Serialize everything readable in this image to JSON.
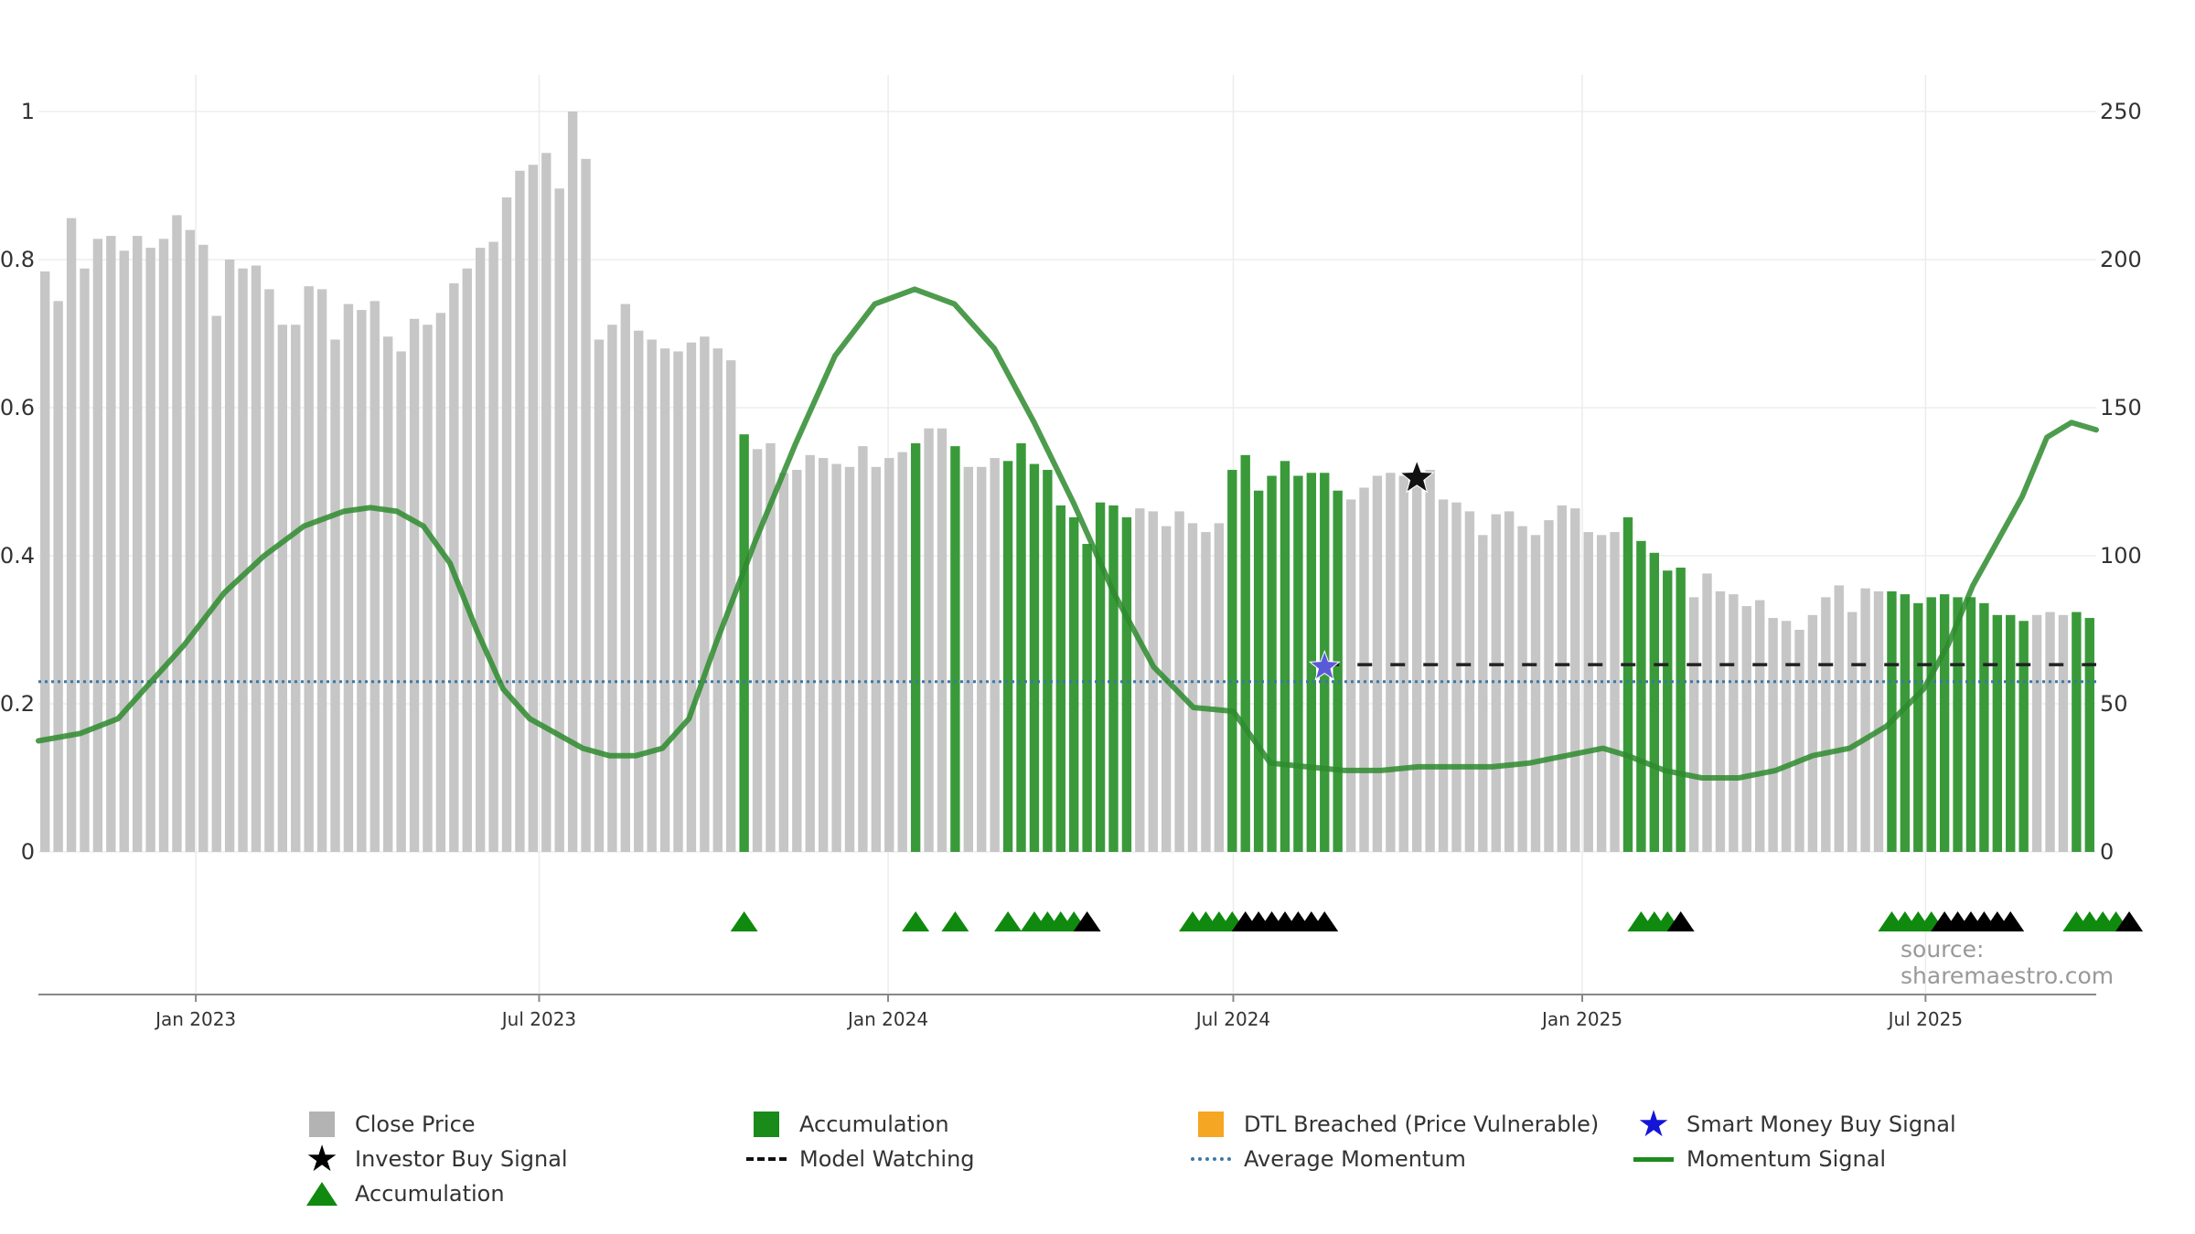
{
  "chart_data": {
    "type": "bar",
    "source": "source: sharemaestro.com",
    "left_axis": {
      "ticks": [
        "0",
        "0.2",
        "0.4",
        "0.6",
        "0.8",
        "1"
      ],
      "range": [
        0,
        1
      ]
    },
    "right_axis": {
      "ticks": [
        "0",
        "50",
        "100",
        "150",
        "200",
        "250"
      ],
      "range": [
        0,
        250
      ]
    },
    "x_axis": {
      "start": "2022-10-10",
      "end": "2025-09-29",
      "ticks": [
        {
          "label": "Jan 2023",
          "date": "2023-01-01"
        },
        {
          "label": "Jul 2023",
          "date": "2023-07-01"
        },
        {
          "label": "Jan 2024",
          "date": "2024-01-01"
        },
        {
          "label": "Jul 2024",
          "date": "2024-07-01"
        },
        {
          "label": "Jan 2025",
          "date": "2025-01-01"
        },
        {
          "label": "Jul 2025",
          "date": "2025-07-01"
        }
      ]
    },
    "close_price": [
      196,
      186,
      214,
      197,
      207,
      208,
      203,
      208,
      204,
      207,
      215,
      210,
      205,
      181,
      200,
      197,
      198,
      190,
      178,
      178,
      191,
      190,
      173,
      185,
      183,
      186,
      174,
      169,
      180,
      178,
      182,
      192,
      197,
      204,
      206,
      221,
      230,
      232,
      236,
      224,
      250,
      234,
      173,
      178,
      185,
      176,
      173,
      170,
      169,
      172,
      174,
      170,
      166,
      141,
      136,
      138,
      128,
      129,
      134,
      133,
      131,
      130,
      137,
      130,
      133,
      135,
      138,
      143,
      143,
      137,
      130,
      130,
      133,
      132,
      138,
      131,
      129,
      117,
      113,
      104,
      118,
      117,
      113,
      116,
      115,
      110,
      115,
      111,
      108,
      111,
      129,
      134,
      122,
      127,
      132,
      127,
      128,
      128,
      122,
      119,
      123,
      127,
      128,
      127,
      124,
      129,
      119,
      118,
      115,
      107,
      114,
      115,
      110,
      107,
      112,
      117,
      116,
      108,
      107,
      108,
      113,
      105,
      101,
      95,
      96,
      86,
      94,
      88,
      87,
      83,
      85,
      79,
      78,
      75,
      80,
      86,
      90,
      81,
      89,
      88,
      88,
      87,
      84,
      86,
      87,
      86,
      86,
      84,
      80,
      80,
      78,
      80,
      81,
      80,
      81,
      79
    ],
    "accumulation_bars": [
      53,
      66,
      69,
      73,
      74,
      75,
      76,
      77,
      78,
      79,
      80,
      81,
      82,
      90,
      91,
      92,
      93,
      94,
      95,
      96,
      97,
      98,
      120,
      121,
      122,
      123,
      124,
      140,
      141,
      142,
      143,
      144,
      145,
      146,
      147,
      148,
      149,
      150,
      154,
      155,
      156,
      157,
      158,
      159
    ],
    "accumulation_markers": [
      53,
      66,
      69,
      73,
      75,
      76,
      77,
      78,
      87,
      88,
      89,
      90,
      121,
      122,
      123,
      140,
      141,
      142,
      143,
      154,
      155,
      156,
      157
    ],
    "investor_markers": [
      79,
      91,
      92,
      93,
      94,
      95,
      96,
      97,
      124,
      144,
      145,
      146,
      147,
      148,
      149,
      158
    ],
    "investor_buy_signal": {
      "index": 104,
      "value": 0.505
    },
    "smart_money_buy_signal": {
      "index": 97,
      "value": 0.25
    },
    "model_watching": {
      "from": 97,
      "to": 159,
      "value": 0.253
    },
    "average_momentum": 0.23,
    "momentum": [
      [
        0,
        0.15
      ],
      [
        3,
        0.16
      ],
      [
        6,
        0.18
      ],
      [
        9,
        0.22
      ],
      [
        12,
        0.28
      ],
      [
        15,
        0.35
      ],
      [
        18,
        0.4
      ],
      [
        21,
        0.44
      ],
      [
        24,
        0.46
      ],
      [
        27,
        0.465
      ],
      [
        29,
        0.46
      ],
      [
        31,
        0.44
      ],
      [
        33,
        0.39
      ],
      [
        36,
        0.3
      ],
      [
        39,
        0.22
      ],
      [
        41,
        0.18
      ],
      [
        44,
        0.16
      ],
      [
        47,
        0.14
      ],
      [
        50,
        0.13
      ],
      [
        53,
        0.13
      ],
      [
        56,
        0.14
      ],
      [
        59,
        0.18
      ],
      [
        62,
        0.28
      ],
      [
        65,
        0.42
      ],
      [
        68,
        0.55
      ],
      [
        71,
        0.67
      ],
      [
        74,
        0.74
      ],
      [
        76,
        0.76
      ],
      [
        78,
        0.74
      ],
      [
        80,
        0.68
      ],
      [
        82,
        0.58
      ],
      [
        84,
        0.47
      ],
      [
        86,
        0.35
      ],
      [
        88,
        0.25
      ],
      [
        90,
        0.195
      ],
      [
        92,
        0.19
      ],
      [
        94,
        0.19
      ],
      [
        96,
        0.18
      ],
      [
        98,
        0.16
      ],
      [
        100,
        0.14
      ],
      [
        103,
        0.12
      ],
      [
        106,
        0.115
      ],
      [
        109,
        0.11
      ],
      [
        112,
        0.11
      ],
      [
        115,
        0.115
      ],
      [
        118,
        0.115
      ],
      [
        121,
        0.115
      ],
      [
        124,
        0.12
      ],
      [
        127,
        0.13
      ],
      [
        130,
        0.14
      ],
      [
        132,
        0.13
      ],
      [
        135,
        0.11
      ],
      [
        138,
        0.1
      ],
      [
        141,
        0.1
      ],
      [
        144,
        0.11
      ],
      [
        147,
        0.13
      ],
      [
        150,
        0.14
      ],
      [
        153,
        0.17
      ],
      [
        156,
        0.22
      ],
      [
        158,
        0.28
      ],
      [
        160,
        0.36
      ],
      [
        162,
        0.42
      ],
      [
        164,
        0.48
      ],
      [
        166,
        0.56
      ],
      [
        168,
        0.58
      ],
      [
        170,
        0.57
      ]
    ],
    "momentum_by_date": [
      [
        "2022-10-10",
        0.15
      ],
      [
        "2022-11-01",
        0.16
      ],
      [
        "2022-11-21",
        0.18
      ],
      [
        "2022-12-05",
        0.22
      ],
      [
        "2022-12-26",
        0.28
      ],
      [
        "2023-01-16",
        0.35
      ],
      [
        "2023-02-06",
        0.4
      ],
      [
        "2023-02-27",
        0.44
      ],
      [
        "2023-03-20",
        0.46
      ],
      [
        "2023-04-03",
        0.465
      ],
      [
        "2023-04-17",
        0.46
      ],
      [
        "2023-05-01",
        0.44
      ],
      [
        "2023-05-15",
        0.39
      ],
      [
        "2023-05-29",
        0.3
      ],
      [
        "2023-06-12",
        0.22
      ],
      [
        "2023-06-26",
        0.18
      ],
      [
        "2023-07-10",
        0.16
      ],
      [
        "2023-07-24",
        0.14
      ],
      [
        "2023-08-07",
        0.13
      ],
      [
        "2023-08-21",
        0.13
      ],
      [
        "2023-09-04",
        0.14
      ],
      [
        "2023-09-18",
        0.18
      ],
      [
        "2023-10-02",
        0.28
      ],
      [
        "2023-10-23",
        0.42
      ],
      [
        "2023-11-13",
        0.55
      ],
      [
        "2023-12-04",
        0.67
      ],
      [
        "2023-12-25",
        0.74
      ],
      [
        "2024-01-15",
        0.76
      ],
      [
        "2024-02-05",
        0.74
      ],
      [
        "2024-02-26",
        0.68
      ],
      [
        "2024-03-18",
        0.58
      ],
      [
        "2024-04-08",
        0.47
      ],
      [
        "2024-04-29",
        0.35
      ],
      [
        "2024-05-20",
        0.25
      ],
      [
        "2024-06-10",
        0.195
      ],
      [
        "2024-07-01",
        0.19
      ]
    ],
    "legend": [
      {
        "label": "Close Price",
        "icon": "grey-square",
        "color": "#b3b3b3"
      },
      {
        "label": "Accumulation",
        "icon": "green-square",
        "color": "#1a8a1a"
      },
      {
        "label": "DTL Breached (Price Vulnerable)",
        "icon": "orange-square",
        "color": "#f5a623"
      },
      {
        "label": "Smart Money Buy Signal",
        "icon": "blue-star",
        "color": "#1515d8"
      },
      {
        "label": "Investor Buy Signal",
        "icon": "black-star",
        "color": "#000000"
      },
      {
        "label": "Model Watching",
        "icon": "black-dash",
        "color": "#111111"
      },
      {
        "label": "Average Momentum",
        "icon": "blue-dotted-line",
        "color": "#3a78a8"
      },
      {
        "label": "Momentum Signal",
        "icon": "green-line",
        "color": "#1f8a1f"
      },
      {
        "label": "Accumulation",
        "icon": "green-triangle",
        "color": "#0f8a0f"
      }
    ]
  }
}
